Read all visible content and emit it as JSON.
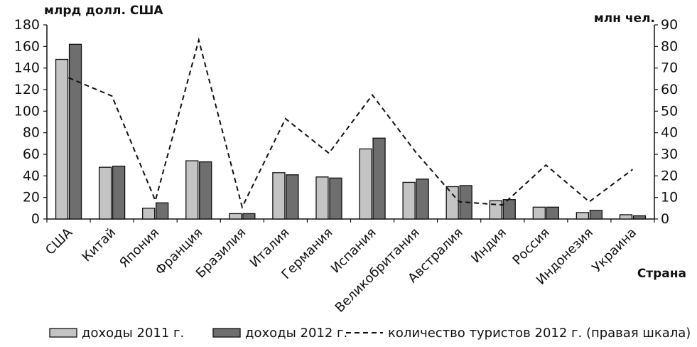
{
  "chart_data": {
    "type": "bar",
    "ylabel_left": "млрд долл. США",
    "ylabel_right": "млн чел.",
    "xlabel": "Страна",
    "categories": [
      "США",
      "Китай",
      "Япония",
      "Франция",
      "Бразилия",
      "Италия",
      "Германия",
      "Испания",
      "Великобритания",
      "Австралия",
      "Индия",
      "Россия",
      "Индонезия",
      "Украина"
    ],
    "series": [
      {
        "name": "доходы 2011 г.",
        "axis": "left",
        "color": "#c4c4c4",
        "values": [
          148,
          48,
          10,
          54,
          5,
          43,
          39,
          65,
          34,
          30,
          17,
          11,
          6,
          4
        ]
      },
      {
        "name": "доходы 2012 г.",
        "axis": "left",
        "color": "#6e6e6e",
        "values": [
          162,
          49,
          15,
          53,
          5,
          41,
          38,
          75,
          37,
          31,
          18,
          11,
          8,
          3
        ]
      },
      {
        "name": "количество туристов 2012 г. (правая шкала)",
        "axis": "right",
        "type": "line",
        "style": "dashed",
        "values": [
          65.5,
          57,
          8.5,
          83,
          5.5,
          46.5,
          30.5,
          57.5,
          31,
          8,
          6.5,
          25,
          8,
          23
        ]
      }
    ],
    "ylim_left": [
      0,
      180
    ],
    "yticks_left": [
      0,
      20,
      40,
      60,
      80,
      100,
      120,
      140,
      160,
      180
    ],
    "ylim_right": [
      0,
      90
    ],
    "yticks_right": [
      0,
      10,
      20,
      30,
      40,
      50,
      60,
      70,
      80,
      90
    ],
    "grid": false,
    "legend_position": "bottom"
  }
}
